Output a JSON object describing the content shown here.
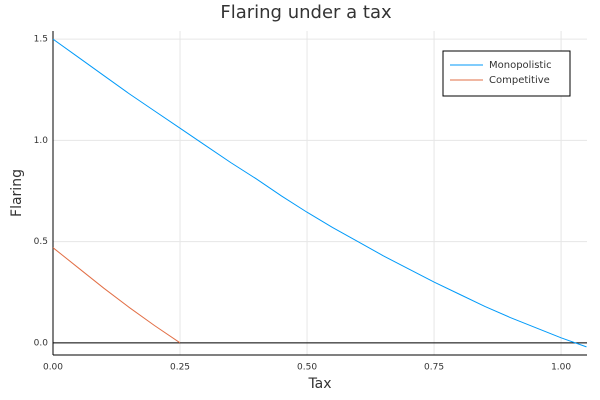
{
  "chart_data": {
    "type": "line",
    "title": "Flaring under a tax",
    "xlabel": "Tax",
    "ylabel": "Flaring",
    "xlim": [
      0,
      1.051
    ],
    "ylim": [
      -0.06,
      1.54
    ],
    "xticks": [
      {
        "value": 0,
        "label": "0.00"
      },
      {
        "value": 0.25,
        "label": "0.25"
      },
      {
        "value": 0.5,
        "label": "0.50"
      },
      {
        "value": 0.75,
        "label": "0.75"
      },
      {
        "value": 1,
        "label": "1.00"
      }
    ],
    "yticks": [
      {
        "value": 0,
        "label": "0.0"
      },
      {
        "value": 0.5,
        "label": "0.5"
      },
      {
        "value": 1,
        "label": "1.0"
      },
      {
        "value": 1.5,
        "label": "1.5"
      }
    ],
    "grid": true,
    "zero_line": true,
    "legend": "top-right",
    "series": [
      {
        "name": "Monopolistic",
        "color": "#009af9",
        "x": [
          0,
          0.05,
          0.1,
          0.15,
          0.2,
          0.25,
          0.3,
          0.35,
          0.4,
          0.45,
          0.5,
          0.55,
          0.6,
          0.65,
          0.7,
          0.75,
          0.8,
          0.85,
          0.9,
          0.95,
          1.0,
          1.05
        ],
        "values": [
          1.5,
          1.41,
          1.32,
          1.23,
          1.145,
          1.06,
          0.975,
          0.89,
          0.81,
          0.725,
          0.645,
          0.57,
          0.5,
          0.43,
          0.365,
          0.3,
          0.24,
          0.18,
          0.125,
          0.075,
          0.025,
          -0.02
        ]
      },
      {
        "name": "Competitive",
        "color": "#e26f46",
        "x": [
          0,
          0.05,
          0.1,
          0.15,
          0.2,
          0.25
        ],
        "values": [
          0.47,
          0.37,
          0.27,
          0.175,
          0.085,
          0
        ]
      }
    ]
  }
}
